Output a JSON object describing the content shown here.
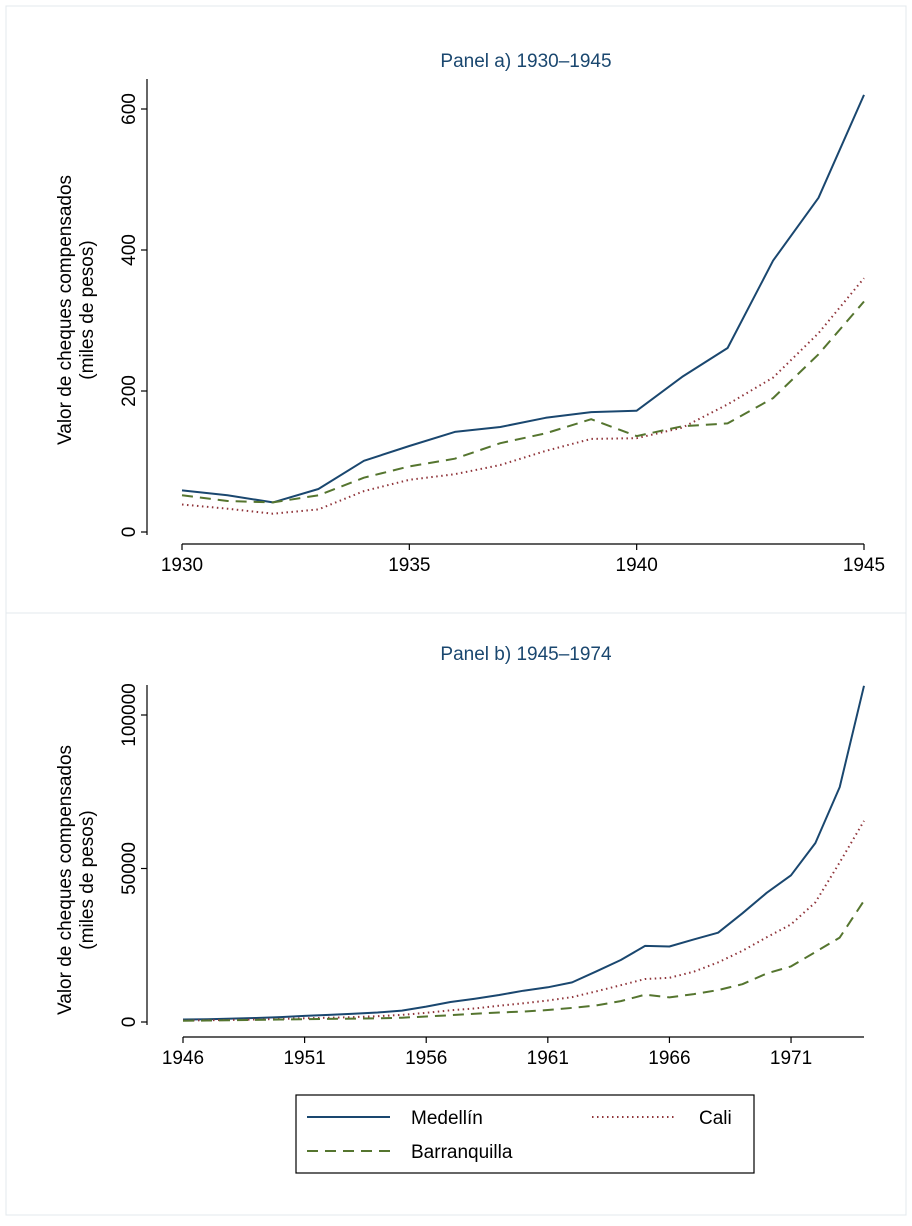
{
  "chart_data": [
    {
      "type": "line",
      "title": "Panel a) 1930–1945",
      "ylabel_line1": "Valor de cheques compensados",
      "ylabel_line2": "(miles de pesos)",
      "xlabel": "",
      "x": [
        1930,
        1931,
        1932,
        1933,
        1934,
        1935,
        1936,
        1937,
        1938,
        1939,
        1940,
        1941,
        1942,
        1943,
        1944,
        1945
      ],
      "xticks": [
        "1930",
        "1935",
        "1940",
        "1945"
      ],
      "yticks": [
        "0",
        "200",
        "400",
        "600"
      ],
      "xlim": [
        1930,
        1945
      ],
      "ylim": [
        0,
        600
      ],
      "series": [
        {
          "name": "Medellín",
          "values": [
            59,
            52,
            42,
            61,
            101,
            122,
            142,
            149,
            162,
            170,
            172,
            220,
            261,
            385,
            474,
            620
          ],
          "color": "#1a476f",
          "style": "solid"
        },
        {
          "name": "Cali",
          "values": [
            39,
            33,
            26,
            32,
            58,
            74,
            82,
            95,
            115,
            132,
            133,
            148,
            181,
            219,
            282,
            360
          ],
          "color": "#90353b",
          "style": "dotted"
        },
        {
          "name": "Barranquilla",
          "values": [
            52,
            44,
            42,
            52,
            77,
            93,
            104,
            126,
            140,
            160,
            136,
            150,
            154,
            190,
            252,
            327
          ],
          "color": "#55752f",
          "style": "dashed"
        }
      ]
    },
    {
      "type": "line",
      "title": "Panel b) 1945–1974",
      "ylabel_line1": "Valor de cheques compensados",
      "ylabel_line2": "(miles de pesos)",
      "xlabel": "",
      "x": [
        1946,
        1947,
        1948,
        1949,
        1950,
        1951,
        1952,
        1953,
        1954,
        1955,
        1956,
        1957,
        1958,
        1959,
        1960,
        1961,
        1962,
        1963,
        1964,
        1965,
        1966,
        1967,
        1968,
        1969,
        1970,
        1971,
        1972,
        1973,
        1974
      ],
      "xticks": [
        "1946",
        "1951",
        "1956",
        "1961",
        "1966",
        "1971"
      ],
      "yticks": [
        "0",
        "50000",
        "100000"
      ],
      "xlim": [
        1946,
        1974
      ],
      "ylim": [
        0,
        100000
      ],
      "series": [
        {
          "name": "Medellín",
          "values": [
            800,
            900,
            1100,
            1300,
            1600,
            2000,
            2300,
            2700,
            3100,
            3700,
            5000,
            6500,
            7600,
            8800,
            10200,
            11300,
            12900,
            16500,
            20200,
            24800,
            24600,
            26900,
            29100,
            35400,
            42100,
            47800,
            58300,
            76500,
            109500
          ],
          "color": "#1a476f",
          "style": "solid"
        },
        {
          "name": "Cali",
          "values": [
            500,
            600,
            700,
            800,
            1000,
            1200,
            1400,
            1600,
            1900,
            2300,
            3000,
            3800,
            4400,
            5300,
            6100,
            7000,
            8100,
            10000,
            12000,
            14000,
            14400,
            16400,
            19400,
            23200,
            27600,
            31800,
            39000,
            52000,
            65500
          ],
          "color": "#90353b",
          "style": "dotted"
        },
        {
          "name": "Barranquilla",
          "values": [
            400,
            500,
            600,
            700,
            800,
            900,
            1000,
            1100,
            1200,
            1400,
            1800,
            2200,
            2700,
            3100,
            3400,
            3900,
            4600,
            5400,
            6800,
            8900,
            8000,
            9100,
            10400,
            12300,
            15800,
            18100,
            22800,
            27500,
            39500
          ],
          "color": "#55752f",
          "style": "dashed"
        }
      ]
    }
  ],
  "legend": {
    "items": [
      "Medellín",
      "Cali",
      "Barranquilla"
    ]
  }
}
